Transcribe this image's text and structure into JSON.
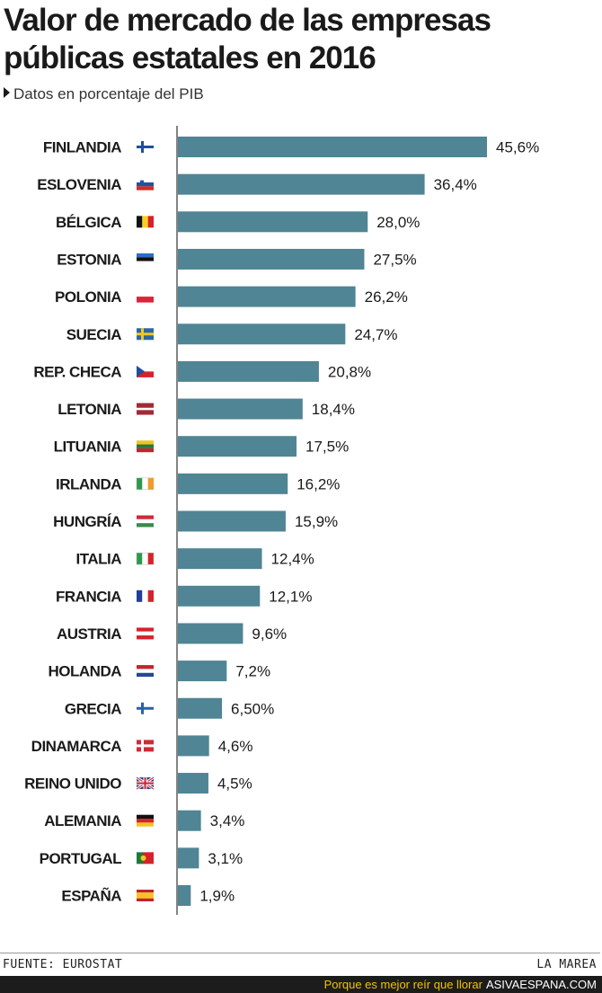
{
  "colors": {
    "bar": "#4f8594",
    "text": "#1a1a1a",
    "axis": "#333333"
  },
  "footer": {
    "source": "FUENTE: EUROSTAT",
    "brand": "LA MAREA",
    "tagline": "Porque es mejor reír que llorar",
    "site": "ASIVAESPANA.COM"
  },
  "chart_data": {
    "type": "bar",
    "orientation": "horizontal",
    "title": "Valor de mercado de las empresas públicas estatales en 2016",
    "subtitle": "Datos en porcentaje del PIB",
    "xlim": [
      0,
      45.6
    ],
    "grid": false,
    "categories": [
      "FINLANDIA",
      "ESLOVENIA",
      "BÉLGICA",
      "ESTONIA",
      "POLONIA",
      "SUECIA",
      "REP. CHECA",
      "LETONIA",
      "LITUANIA",
      "IRLANDA",
      "HUNGRÍA",
      "ITALIA",
      "FRANCIA",
      "AUSTRIA",
      "HOLANDA",
      "GRECIA",
      "DINAMARCA",
      "REINO UNIDO",
      "ALEMANIA",
      "PORTUGAL",
      "ESPAÑA"
    ],
    "values": [
      45.6,
      36.4,
      28.0,
      27.5,
      26.2,
      24.7,
      20.8,
      18.4,
      17.5,
      16.2,
      15.9,
      12.4,
      12.1,
      9.6,
      7.2,
      6.5,
      4.6,
      4.5,
      3.4,
      3.1,
      1.9
    ],
    "value_labels": [
      "45,6%",
      "36,4%",
      "28,0%",
      "27,5%",
      "26,2%",
      "24,7%",
      "20,8%",
      "18,4%",
      "17,5%",
      "16,2%",
      "15,9%",
      "12,4%",
      "12,1%",
      "9,6%",
      "7,2%",
      "6,50%",
      "4,6%",
      "4,5%",
      "3,4%",
      "3,1%",
      "1,9%"
    ],
    "flags": [
      "finland-flag-icon",
      "slovenia-flag-icon",
      "belgium-flag-icon",
      "estonia-flag-icon",
      "poland-flag-icon",
      "sweden-flag-icon",
      "czech-flag-icon",
      "latvia-flag-icon",
      "lithuania-flag-icon",
      "ireland-flag-icon",
      "hungary-flag-icon",
      "italy-flag-icon",
      "france-flag-icon",
      "austria-flag-icon",
      "netherlands-flag-icon",
      "greece-flag-icon",
      "denmark-flag-icon",
      "uk-flag-icon",
      "germany-flag-icon",
      "portugal-flag-icon",
      "spain-flag-icon"
    ]
  }
}
